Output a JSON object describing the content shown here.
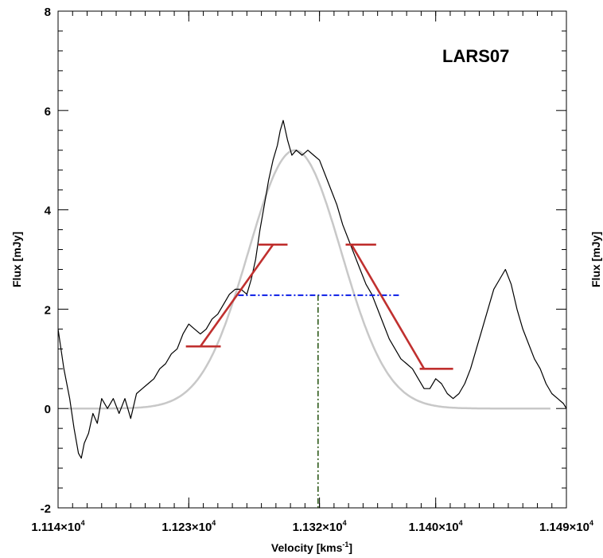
{
  "chart_data": {
    "type": "line",
    "title": "LARS07",
    "xlabel": "Velocity [kms",
    "xlabel_sup": "-1",
    "xlabel_close": "]",
    "ylabel": "Flux [mJy]",
    "right_neighbor_ylabel": "Flux [mJy]",
    "xlim": [
      11140,
      11490
    ],
    "ylim": [
      -2,
      8
    ],
    "grid": false,
    "xticks": [
      {
        "value": 11140,
        "label": "1.114×10",
        "exp": "4"
      },
      {
        "value": 11230,
        "label": "1.123×10",
        "exp": "4"
      },
      {
        "value": 11320,
        "label": "1.132×10",
        "exp": "4"
      },
      {
        "value": 11400,
        "label": "1.140×10",
        "exp": "4"
      },
      {
        "value": 11490,
        "label": "1.149×10",
        "exp": "4"
      }
    ],
    "yticks": [
      -2,
      0,
      2,
      4,
      6,
      8
    ],
    "series": [
      {
        "kind": "spectrum",
        "color": "#000000",
        "points": [
          [
            11140,
            1.6
          ],
          [
            11144,
            0.8
          ],
          [
            11148,
            0.2
          ],
          [
            11151,
            -0.4
          ],
          [
            11154,
            -0.9
          ],
          [
            11156,
            -1.0
          ],
          [
            11158,
            -0.7
          ],
          [
            11161,
            -0.5
          ],
          [
            11164,
            -0.1
          ],
          [
            11167,
            -0.3
          ],
          [
            11170,
            0.2
          ],
          [
            11174,
            0.0
          ],
          [
            11178,
            0.2
          ],
          [
            11182,
            -0.1
          ],
          [
            11186,
            0.2
          ],
          [
            11190,
            -0.2
          ],
          [
            11194,
            0.3
          ],
          [
            11198,
            0.4
          ],
          [
            11202,
            0.5
          ],
          [
            11206,
            0.6
          ],
          [
            11210,
            0.8
          ],
          [
            11214,
            0.9
          ],
          [
            11218,
            1.1
          ],
          [
            11222,
            1.2
          ],
          [
            11226,
            1.5
          ],
          [
            11230,
            1.7
          ],
          [
            11234,
            1.6
          ],
          [
            11238,
            1.5
          ],
          [
            11242,
            1.6
          ],
          [
            11246,
            1.8
          ],
          [
            11250,
            1.9
          ],
          [
            11254,
            2.1
          ],
          [
            11258,
            2.3
          ],
          [
            11262,
            2.4
          ],
          [
            11266,
            2.4
          ],
          [
            11270,
            2.3
          ],
          [
            11273,
            2.6
          ],
          [
            11276,
            3.0
          ],
          [
            11279,
            3.6
          ],
          [
            11282,
            4.1
          ],
          [
            11285,
            4.6
          ],
          [
            11288,
            5.0
          ],
          [
            11291,
            5.3
          ],
          [
            11293,
            5.6
          ],
          [
            11295,
            5.8
          ],
          [
            11298,
            5.4
          ],
          [
            11301,
            5.1
          ],
          [
            11304,
            5.2
          ],
          [
            11308,
            5.1
          ],
          [
            11312,
            5.2
          ],
          [
            11316,
            5.1
          ],
          [
            11320,
            5.0
          ],
          [
            11324,
            4.7
          ],
          [
            11328,
            4.4
          ],
          [
            11332,
            4.1
          ],
          [
            11336,
            3.7
          ],
          [
            11340,
            3.4
          ],
          [
            11344,
            3.1
          ],
          [
            11348,
            2.8
          ],
          [
            11352,
            2.5
          ],
          [
            11356,
            2.3
          ],
          [
            11360,
            2.0
          ],
          [
            11364,
            1.7
          ],
          [
            11368,
            1.4
          ],
          [
            11372,
            1.2
          ],
          [
            11376,
            1.0
          ],
          [
            11380,
            0.9
          ],
          [
            11384,
            0.8
          ],
          [
            11388,
            0.6
          ],
          [
            11392,
            0.4
          ],
          [
            11396,
            0.4
          ],
          [
            11400,
            0.6
          ],
          [
            11404,
            0.5
          ],
          [
            11408,
            0.3
          ],
          [
            11412,
            0.2
          ],
          [
            11416,
            0.3
          ],
          [
            11420,
            0.5
          ],
          [
            11424,
            0.8
          ],
          [
            11428,
            1.2
          ],
          [
            11432,
            1.6
          ],
          [
            11436,
            2.0
          ],
          [
            11440,
            2.4
          ],
          [
            11444,
            2.6
          ],
          [
            11448,
            2.8
          ],
          [
            11452,
            2.5
          ],
          [
            11456,
            2.0
          ],
          [
            11460,
            1.6
          ],
          [
            11464,
            1.3
          ],
          [
            11468,
            1.0
          ],
          [
            11472,
            0.8
          ],
          [
            11476,
            0.5
          ],
          [
            11480,
            0.3
          ],
          [
            11484,
            0.2
          ],
          [
            11488,
            0.1
          ],
          [
            11490,
            0.0
          ]
        ]
      },
      {
        "kind": "gaussian_fit",
        "color": "#c8c8c8",
        "amplitude": 5.2,
        "center": 11303,
        "sigma": 32,
        "baseline": 0,
        "x_range": [
          11147,
          11479
        ]
      }
    ],
    "annotations": {
      "red_color": "#c0302f",
      "blue_color": "#0a1ce6",
      "green_color": "#2e5a1a",
      "red_segments": [
        [
          [
            11228,
            1.25
          ],
          [
            11252,
            1.25
          ]
        ],
        [
          [
            11238,
            1.25
          ],
          [
            11288,
            3.3
          ]
        ],
        [
          [
            11278,
            3.3
          ],
          [
            11298,
            3.3
          ]
        ],
        [
          [
            11338,
            3.3
          ],
          [
            11359,
            3.3
          ]
        ],
        [
          [
            11342,
            3.3
          ],
          [
            11392,
            0.8
          ]
        ],
        [
          [
            11389,
            0.8
          ],
          [
            11412,
            0.8
          ]
        ]
      ],
      "blue_dashdot": [
        [
          11264,
          2.28
        ],
        [
          11375,
          2.28
        ]
      ],
      "green_dashdot": [
        [
          11319,
          2.28
        ],
        [
          11319,
          -2
        ]
      ]
    }
  }
}
